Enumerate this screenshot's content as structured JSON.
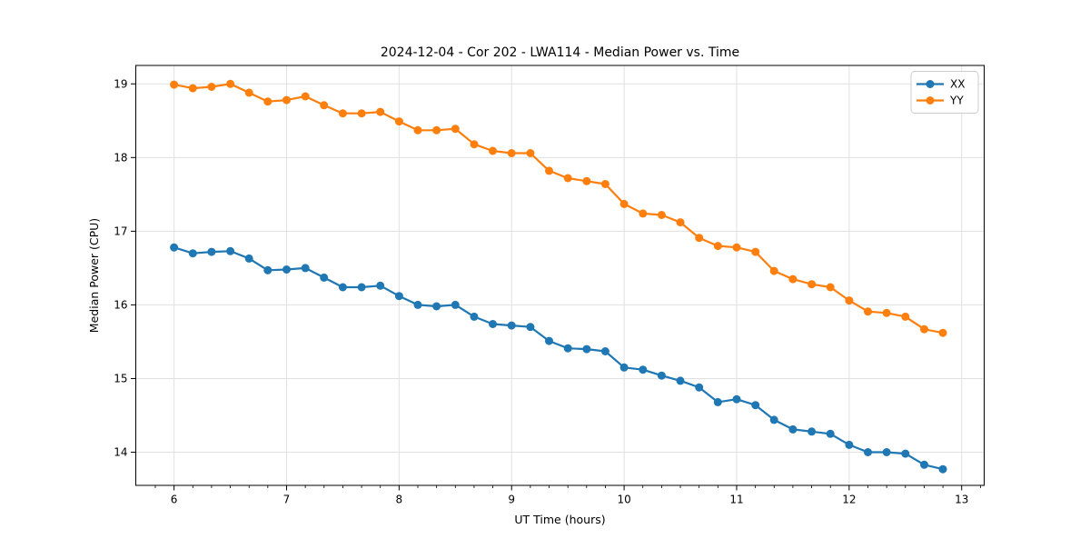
{
  "chart_data": {
    "type": "line",
    "title": "2024-12-04 - Cor 202 - LWA114 - Median Power vs. Time",
    "xlabel": "UT Time (hours)",
    "ylabel": "Median Power (CPU)",
    "xlim": [
      5.66,
      13.2
    ],
    "ylim": [
      13.55,
      19.25
    ],
    "xticks": [
      6,
      7,
      8,
      9,
      10,
      11,
      12,
      13
    ],
    "yticks": [
      14,
      15,
      16,
      17,
      18,
      19
    ],
    "x_minor_step_hours": 0.1667,
    "grid": true,
    "legend_position": "upper right",
    "x": [
      6.0,
      6.167,
      6.333,
      6.5,
      6.667,
      6.833,
      7.0,
      7.167,
      7.333,
      7.5,
      7.667,
      7.833,
      8.0,
      8.167,
      8.333,
      8.5,
      8.667,
      8.833,
      9.0,
      9.167,
      9.333,
      9.5,
      9.667,
      9.833,
      10.0,
      10.167,
      10.333,
      10.5,
      10.667,
      10.833,
      11.0,
      11.167,
      11.333,
      11.5,
      11.667,
      11.833,
      12.0,
      12.167,
      12.333,
      12.5,
      12.667,
      12.833
    ],
    "series": [
      {
        "name": "XX",
        "color": "#1f77b4",
        "values": [
          16.78,
          16.7,
          16.72,
          16.73,
          16.63,
          16.47,
          16.48,
          16.5,
          16.37,
          16.24,
          16.24,
          16.26,
          16.12,
          16.0,
          15.98,
          16.0,
          15.84,
          15.74,
          15.72,
          15.7,
          15.51,
          15.41,
          15.4,
          15.37,
          15.15,
          15.12,
          15.04,
          14.97,
          14.88,
          14.68,
          14.72,
          14.64,
          14.44,
          14.31,
          14.28,
          14.25,
          14.1,
          14.0,
          14.0,
          13.98,
          13.83,
          13.77
        ]
      },
      {
        "name": "YY",
        "color": "#ff7f0e",
        "values": [
          18.99,
          18.94,
          18.96,
          19.0,
          18.88,
          18.76,
          18.78,
          18.83,
          18.71,
          18.6,
          18.6,
          18.62,
          18.49,
          18.37,
          18.37,
          18.39,
          18.18,
          18.09,
          18.06,
          18.06,
          17.82,
          17.72,
          17.68,
          17.64,
          17.37,
          17.24,
          17.22,
          17.12,
          16.91,
          16.8,
          16.78,
          16.72,
          16.46,
          16.35,
          16.28,
          16.24,
          16.06,
          15.91,
          15.89,
          15.84,
          15.67,
          15.62
        ]
      }
    ],
    "style": {
      "grid_color": "#e0e0e0",
      "frame_color": "#000000",
      "tick_color": "#000000",
      "background": "#ffffff"
    }
  }
}
